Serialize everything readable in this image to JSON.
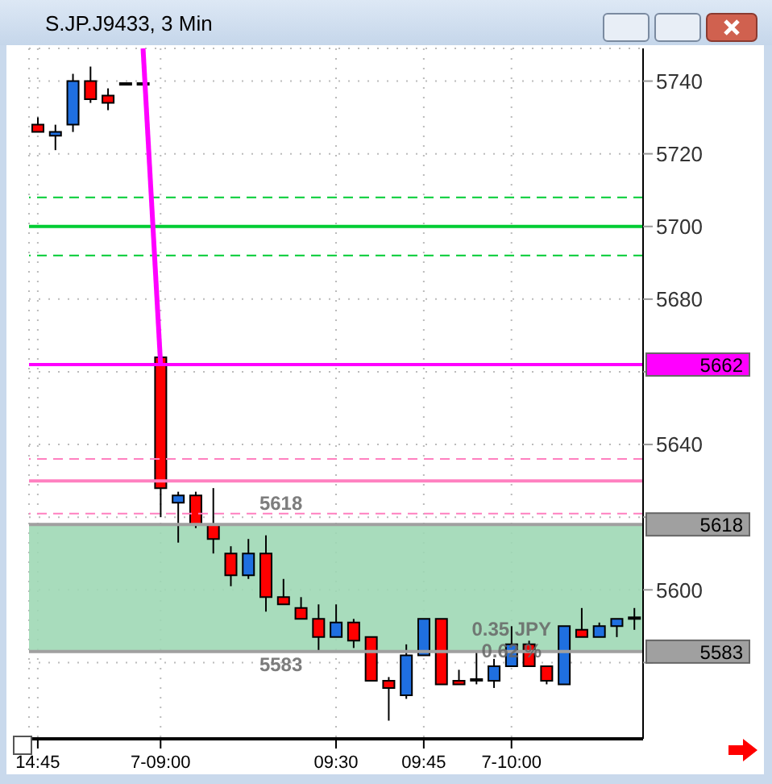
{
  "chart_data": {
    "type": "candlestick",
    "title": "S.JP.J9433, 3 Min",
    "categories": [
      "14:45",
      null,
      null,
      null,
      null,
      null,
      null,
      "7-09:00",
      null,
      null,
      null,
      null,
      null,
      null,
      null,
      null,
      null,
      "09:30",
      null,
      null,
      null,
      null,
      "09:45",
      null,
      null,
      null,
      null,
      "7-10:00",
      null,
      null,
      null,
      null,
      null,
      null,
      null
    ],
    "ohlc": [
      [
        5728,
        5730,
        5726,
        5726
      ],
      [
        5725,
        5728,
        5721,
        5726
      ],
      [
        5728,
        5742,
        5726,
        5740
      ],
      [
        5740,
        5744,
        5734,
        5735
      ],
      [
        5736,
        5738,
        5732,
        5734
      ],
      [
        5739,
        5739,
        5739,
        5739
      ],
      [
        5739,
        5739,
        5739,
        5739
      ],
      [
        5664,
        5664,
        5620,
        5628
      ],
      [
        5624,
        5627,
        5613,
        5626
      ],
      [
        5626,
        5627,
        5617,
        5618
      ],
      [
        5618,
        5628,
        5610,
        5614
      ],
      [
        5610,
        5612,
        5601,
        5604
      ],
      [
        5604,
        5614,
        5603,
        5610
      ],
      [
        5610,
        5615,
        5594,
        5598
      ],
      [
        5598,
        5603,
        5596,
        5596
      ],
      [
        5595,
        5598,
        5592,
        5592
      ],
      [
        5592,
        5596,
        5583,
        5587
      ],
      [
        5587,
        5596,
        5587,
        5591
      ],
      [
        5591,
        5592,
        5584,
        5586
      ],
      [
        5587,
        5587,
        5575,
        5575
      ],
      [
        5575,
        5576,
        5564,
        5573
      ],
      [
        5571,
        5585,
        5570,
        5582
      ],
      [
        5582,
        5592,
        5582,
        5592
      ],
      [
        5592,
        5592,
        5574,
        5574
      ],
      [
        5575,
        5578,
        5574,
        5574
      ],
      [
        5575,
        5583,
        5574,
        5575
      ],
      [
        5575,
        5581,
        5573,
        5579
      ],
      [
        5579,
        5590,
        5579,
        5585
      ],
      [
        5585,
        5586,
        5579,
        5579
      ],
      [
        5579,
        5579,
        5574,
        5575
      ],
      [
        5574,
        5590,
        5574,
        5590
      ],
      [
        5589,
        5595,
        5587,
        5587
      ],
      [
        5587,
        5591,
        5587,
        5590
      ],
      [
        5590,
        5592,
        5587,
        5592
      ],
      [
        5592,
        5595,
        5589,
        5592
      ]
    ],
    "colors": [
      "#ff0000",
      "#1f6fe0",
      "#1f6fe0",
      "#ff0000",
      "#ff0000",
      "#000000",
      "#000000",
      "#ff0000",
      "#1f6fe0",
      "#ff0000",
      "#ff0000",
      "#ff0000",
      "#1f6fe0",
      "#ff0000",
      "#ff0000",
      "#ff0000",
      "#ff0000",
      "#1f6fe0",
      "#ff0000",
      "#ff0000",
      "#ff0000",
      "#1f6fe0",
      "#1f6fe0",
      "#ff0000",
      "#ff0000",
      "#000000",
      "#1f6fe0",
      "#1f6fe0",
      "#ff0000",
      "#ff0000",
      "#1f6fe0",
      "#ff0000",
      "#1f6fe0",
      "#1f6fe0",
      "#000000"
    ],
    "series": [
      {
        "type": "line",
        "color": "#ff00ff",
        "values": [
          null,
          null,
          null,
          null,
          null,
          null,
          5749,
          5662,
          null,
          null,
          null,
          null,
          null,
          null,
          null,
          null,
          null,
          null,
          null,
          null,
          null,
          null,
          null,
          null,
          null,
          null,
          null,
          null,
          null,
          null,
          null,
          null,
          null,
          null,
          null
        ]
      }
    ],
    "ylim": [
      5559,
      5749
    ],
    "yticks": [
      {
        "value": 5580,
        "label": null
      },
      5600,
      {
        "value": 5620,
        "label": null
      },
      5640,
      {
        "value": 5660,
        "label": null
      },
      5680,
      5700,
      5720,
      5740
    ],
    "grid": true,
    "ref_lines": [
      {
        "axis": "y",
        "value": 5708,
        "color": "#00cc33",
        "line_style": "dashed"
      },
      {
        "axis": "y",
        "value": 5700,
        "color": "#00cc33",
        "line_style": "solid"
      },
      {
        "axis": "y",
        "value": 5692,
        "color": "#00cc33",
        "line_style": "dashed"
      },
      {
        "axis": "y",
        "value": 5662,
        "label": "5662",
        "color": "#ff00ff",
        "line_style": "solid"
      },
      {
        "axis": "y",
        "value": 5636,
        "color": "#ff80c0",
        "line_style": "dashed"
      },
      {
        "axis": "y",
        "value": 5630,
        "color": "#ff80c0",
        "line_style": "solid"
      },
      {
        "axis": "y",
        "value": 5621,
        "color": "#ff80c0",
        "line_style": "dashed"
      },
      {
        "axis": "y",
        "value": 5618,
        "label": "5618",
        "color": "#a0a0a0",
        "line_style": "solid"
      },
      {
        "axis": "y",
        "value": 5583,
        "label": "5583",
        "color": "#a0a0a0",
        "line_style": "solid"
      }
    ],
    "bands": [
      {
        "axis": "y",
        "from": 5583,
        "to": 5618,
        "color": "#9fd8b5"
      }
    ],
    "annotations": [
      "5618",
      "5583",
      "0.35 JPY",
      "0.62 %"
    ]
  }
}
